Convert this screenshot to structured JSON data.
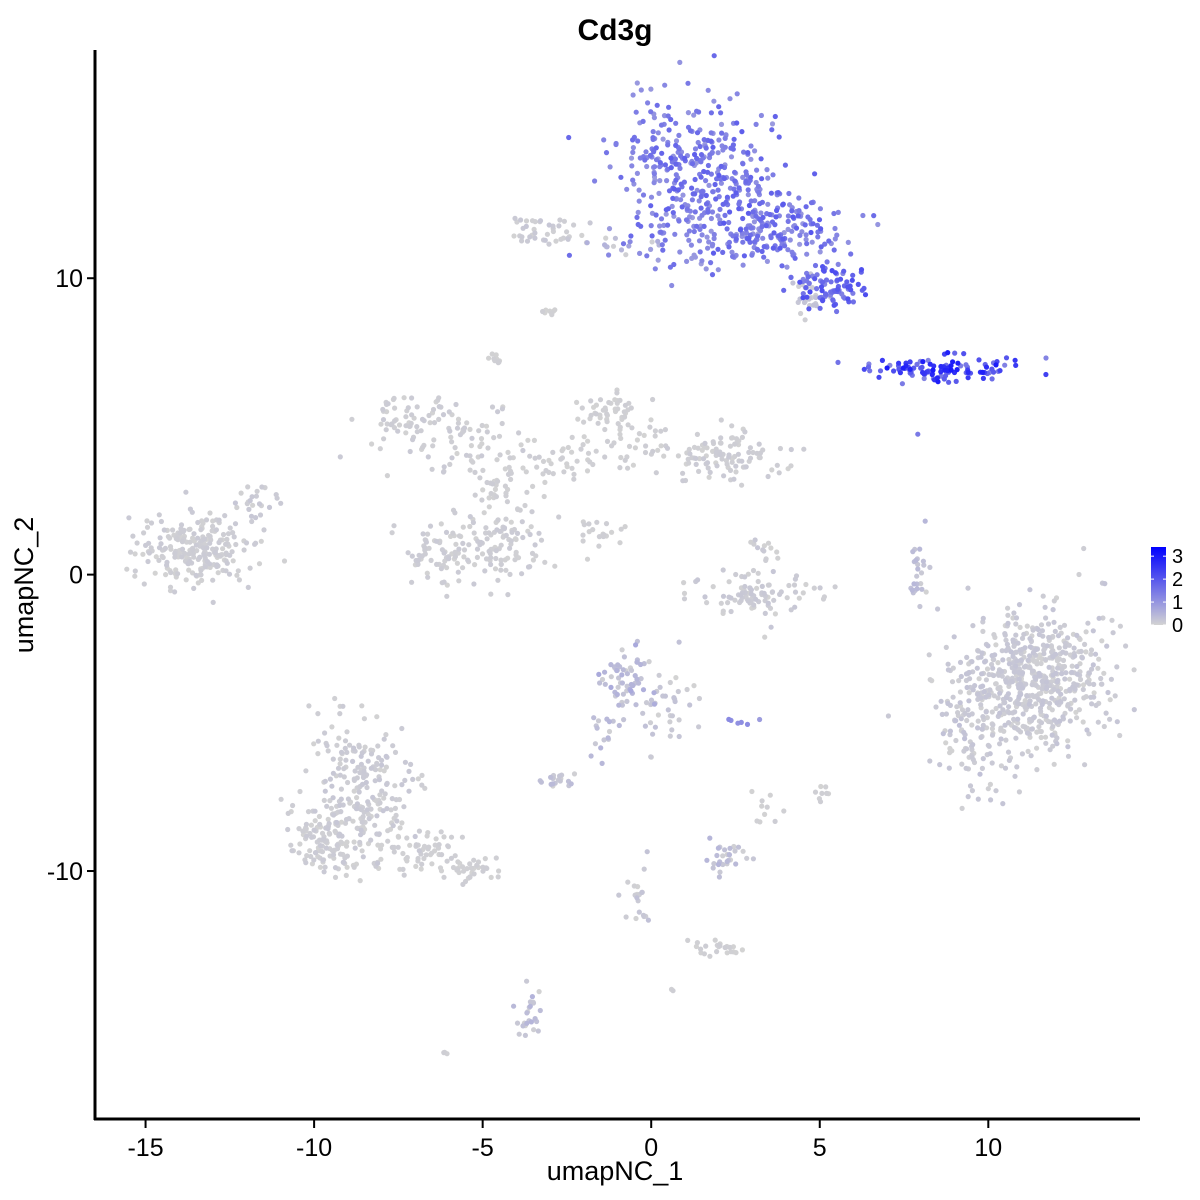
{
  "chart_data": {
    "type": "scatter",
    "title": "Cd3g",
    "xlabel": "umapNC_1",
    "ylabel": "umapNC_2",
    "xlim": [
      -16.5,
      14.5
    ],
    "ylim": [
      -18.4,
      17.7
    ],
    "x_ticks": [
      -15,
      -10,
      -5,
      0,
      5,
      10
    ],
    "x_tick_labels": [
      "-15",
      "-10",
      "-5",
      "0",
      "5",
      "10"
    ],
    "y_ticks": [
      -10,
      0,
      10
    ],
    "y_tick_labels": [
      "-10",
      "0",
      "10"
    ],
    "grid": false,
    "legend_position": "right",
    "color_scale": {
      "low": "#d3d3d3",
      "high": "#0000ff",
      "min": 0,
      "max": 3.4,
      "ticks": [
        0,
        1,
        2,
        3
      ],
      "tick_labels": [
        "0",
        "1",
        "2",
        "3"
      ]
    },
    "clusters": [
      {
        "cx": 0.7,
        "cy": 14.2,
        "sx": 0.9,
        "sy": 1.3,
        "n": 200,
        "expr": [
          0.9,
          1.8
        ]
      },
      {
        "cx": 2.4,
        "cy": 13.0,
        "sx": 1.0,
        "sy": 1.2,
        "n": 180,
        "expr": [
          1.0,
          1.9
        ]
      },
      {
        "cx": 4.0,
        "cy": 11.6,
        "sx": 0.9,
        "sy": 0.5,
        "n": 130,
        "expr": [
          0.9,
          2.0
        ]
      },
      {
        "cx": 5.4,
        "cy": 9.7,
        "sx": 0.55,
        "sy": 0.4,
        "n": 90,
        "expr": [
          1.2,
          2.2
        ]
      },
      {
        "cx": 1.5,
        "cy": 11.3,
        "sx": 1.2,
        "sy": 0.6,
        "n": 80,
        "expr": [
          0.8,
          1.7
        ]
      },
      {
        "cx": 4.6,
        "cy": 9.3,
        "sx": 0.35,
        "sy": 0.3,
        "n": 25,
        "expr": [
          0.0,
          0.3
        ]
      },
      {
        "cx": 8.5,
        "cy": 6.9,
        "sx": 1.1,
        "sy": 0.22,
        "n": 110,
        "expr": [
          1.2,
          3.0
        ]
      },
      {
        "cx": -3.1,
        "cy": 11.6,
        "sx": 0.5,
        "sy": 0.3,
        "n": 40,
        "expr": [
          0.0,
          0.2
        ]
      },
      {
        "cx": -1.1,
        "cy": 11.2,
        "sx": 0.6,
        "sy": 0.15,
        "n": 15,
        "expr": [
          0.0,
          0.8
        ]
      },
      {
        "cx": -13.5,
        "cy": 0.9,
        "sx": 0.9,
        "sy": 0.6,
        "n": 240,
        "expr": [
          0.0,
          0.15
        ]
      },
      {
        "cx": -11.7,
        "cy": 2.3,
        "sx": 0.4,
        "sy": 0.4,
        "n": 25,
        "expr": [
          0.0,
          0.2
        ]
      },
      {
        "cx": -7.2,
        "cy": 5.3,
        "sx": 0.6,
        "sy": 0.5,
        "n": 60,
        "expr": [
          0.0,
          0.15
        ]
      },
      {
        "cx": -5.5,
        "cy": 4.5,
        "sx": 0.9,
        "sy": 0.6,
        "n": 60,
        "expr": [
          0.0,
          0.15
        ]
      },
      {
        "cx": -6.0,
        "cy": 0.7,
        "sx": 0.6,
        "sy": 0.6,
        "n": 80,
        "expr": [
          0.0,
          0.15
        ]
      },
      {
        "cx": -4.3,
        "cy": 0.9,
        "sx": 0.6,
        "sy": 0.7,
        "n": 90,
        "expr": [
          0.0,
          0.15
        ]
      },
      {
        "cx": -4.5,
        "cy": 3.0,
        "sx": 0.5,
        "sy": 0.8,
        "n": 40,
        "expr": [
          0.0,
          0.1
        ]
      },
      {
        "cx": -2.8,
        "cy": 3.9,
        "sx": 0.8,
        "sy": 0.4,
        "n": 40,
        "expr": [
          0.0,
          0.1
        ]
      },
      {
        "cx": -1.3,
        "cy": 5.6,
        "sx": 0.4,
        "sy": 0.3,
        "n": 35,
        "expr": [
          0.0,
          0.1
        ]
      },
      {
        "cx": -0.6,
        "cy": 4.6,
        "sx": 0.6,
        "sy": 0.5,
        "n": 40,
        "expr": [
          0.0,
          0.1
        ]
      },
      {
        "cx": 2.2,
        "cy": 4.1,
        "sx": 0.9,
        "sy": 0.4,
        "n": 110,
        "expr": [
          0.0,
          0.15
        ]
      },
      {
        "cx": -1.6,
        "cy": 1.4,
        "sx": 0.4,
        "sy": 0.3,
        "n": 20,
        "expr": [
          0.0,
          0.1
        ]
      },
      {
        "cx": -4.6,
        "cy": 7.3,
        "sx": 0.15,
        "sy": 0.15,
        "n": 10,
        "expr": [
          0.0,
          0.1
        ]
      },
      {
        "cx": -3.0,
        "cy": 8.9,
        "sx": 0.15,
        "sy": 0.08,
        "n": 8,
        "expr": [
          0.0,
          0.1
        ]
      },
      {
        "cx": 3.0,
        "cy": -0.6,
        "sx": 0.9,
        "sy": 0.35,
        "n": 90,
        "expr": [
          0.0,
          0.2
        ]
      },
      {
        "cx": 3.3,
        "cy": 0.8,
        "sx": 0.3,
        "sy": 0.3,
        "n": 15,
        "expr": [
          0.0,
          0.2
        ]
      },
      {
        "cx": 7.9,
        "cy": 0.2,
        "sx": 0.12,
        "sy": 0.6,
        "n": 25,
        "expr": [
          0.0,
          0.5
        ]
      },
      {
        "cx": 11.3,
        "cy": -3.6,
        "sx": 1.1,
        "sy": 1.2,
        "n": 620,
        "expr": [
          0.0,
          0.25
        ]
      },
      {
        "cx": 9.5,
        "cy": -5.4,
        "sx": 0.6,
        "sy": 0.9,
        "n": 90,
        "expr": [
          0.0,
          0.3
        ]
      },
      {
        "cx": -0.8,
        "cy": -3.6,
        "sx": 0.4,
        "sy": 0.5,
        "n": 60,
        "expr": [
          0.0,
          0.7
        ]
      },
      {
        "cx": 0.5,
        "cy": -4.4,
        "sx": 0.4,
        "sy": 0.6,
        "n": 40,
        "expr": [
          0.0,
          0.3
        ]
      },
      {
        "cx": -1.5,
        "cy": -5.3,
        "sx": 0.2,
        "sy": 0.5,
        "n": 15,
        "expr": [
          0.0,
          0.5
        ]
      },
      {
        "cx": -2.7,
        "cy": -6.9,
        "sx": 0.3,
        "sy": 0.15,
        "n": 20,
        "expr": [
          0.0,
          0.4
        ]
      },
      {
        "cx": 2.2,
        "cy": -9.5,
        "sx": 0.35,
        "sy": 0.25,
        "n": 30,
        "expr": [
          0.0,
          0.5
        ]
      },
      {
        "cx": -8.8,
        "cy": -7.5,
        "sx": 0.8,
        "sy": 1.2,
        "n": 260,
        "expr": [
          0.0,
          0.2
        ]
      },
      {
        "cx": -9.7,
        "cy": -9.1,
        "sx": 0.5,
        "sy": 0.5,
        "n": 80,
        "expr": [
          0.0,
          0.15
        ]
      },
      {
        "cx": -6.8,
        "cy": -9.3,
        "sx": 0.7,
        "sy": 0.4,
        "n": 60,
        "expr": [
          0.0,
          0.1
        ]
      },
      {
        "cx": -5.3,
        "cy": -10.0,
        "sx": 0.4,
        "sy": 0.25,
        "n": 35,
        "expr": [
          0.0,
          0.1
        ]
      },
      {
        "cx": 2.0,
        "cy": -12.6,
        "sx": 0.5,
        "sy": 0.15,
        "n": 25,
        "expr": [
          0.0,
          0.1
        ]
      },
      {
        "cx": -0.4,
        "cy": -11.0,
        "sx": 0.25,
        "sy": 0.6,
        "n": 20,
        "expr": [
          0.0,
          0.3
        ]
      },
      {
        "cx": -3.6,
        "cy": -14.8,
        "sx": 0.15,
        "sy": 0.5,
        "n": 25,
        "expr": [
          0.0,
          0.6
        ]
      },
      {
        "cx": 3.4,
        "cy": -7.8,
        "sx": 0.2,
        "sy": 0.4,
        "n": 10,
        "expr": [
          0.0,
          0.1
        ]
      },
      {
        "cx": 5.0,
        "cy": -7.4,
        "sx": 0.15,
        "sy": 0.2,
        "n": 8,
        "expr": [
          0.0,
          0.1
        ]
      },
      {
        "cx": 2.8,
        "cy": -5.0,
        "sx": 0.3,
        "sy": 0.1,
        "n": 6,
        "expr": [
          0.5,
          1.2
        ]
      },
      {
        "cx": -6.1,
        "cy": -16.1,
        "sx": 0.05,
        "sy": 0.05,
        "n": 3,
        "expr": [
          0.0,
          0.1
        ]
      },
      {
        "cx": 0.7,
        "cy": -14.0,
        "sx": 0.05,
        "sy": 0.05,
        "n": 2,
        "expr": [
          0.0,
          0.1
        ]
      },
      {
        "cx": 8.0,
        "cy": 4.8,
        "sx": 0.05,
        "sy": 0.05,
        "n": 1,
        "expr": [
          1.3,
          1.5
        ]
      },
      {
        "cx": 3.3,
        "cy": -2.1,
        "sx": 0.05,
        "sy": 0.05,
        "n": 1,
        "expr": [
          0.0,
          0.1
        ]
      }
    ]
  }
}
